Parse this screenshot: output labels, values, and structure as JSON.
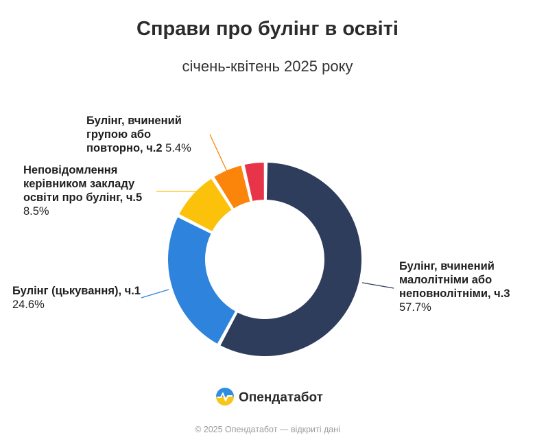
{
  "header": {
    "title": "Справи про булінг в освіті",
    "subtitle": "січень-квітень 2025 року"
  },
  "chart_data": {
    "type": "pie",
    "variant": "donut",
    "title": "Справи про булінг в освіті",
    "subtitle": "січень-квітень 2025 року",
    "unit": "%",
    "slices": [
      {
        "name": "Булінг, вчинений малолітніми або неповнолітніми, ч.3",
        "value": 57.7,
        "value_label": "57.7%",
        "color": "#2e3d5c"
      },
      {
        "name": "Булінг (цькування), ч.1",
        "value": 24.6,
        "value_label": "24.6%",
        "color": "#2e83dc"
      },
      {
        "name": "Неповідомлення керівником закладу освіти про булінг, ч.5",
        "value": 8.5,
        "value_label": "8.5%",
        "color": "#fcc10a"
      },
      {
        "name": "Булінг, вчинений групою або повторно, ч.2",
        "value": 5.4,
        "value_label": "5.4%",
        "color": "#fb850b"
      },
      {
        "name": "",
        "value": 3.8,
        "value_label": "",
        "color": "#e83448"
      }
    ]
  },
  "labels": {
    "ch3": {
      "name": "Булінг, вчинений малолітніми або неповнолітніми, ч.3",
      "value": "57.7%"
    },
    "ch1": {
      "name": "Булінг (цькування), ч.1",
      "value": "24.6%"
    },
    "ch5": {
      "name": "Неповідомлення керівником закладу освіти про булінг, ч.5",
      "value": "8.5%"
    },
    "ch2": {
      "name": "Булінг, вчинений групою або повторно, ч.2",
      "value": "5.4%"
    }
  },
  "brand": {
    "name": "Опендатабот"
  },
  "footer": {
    "text": "© 2025 Опендатабот — відкриті дані"
  }
}
